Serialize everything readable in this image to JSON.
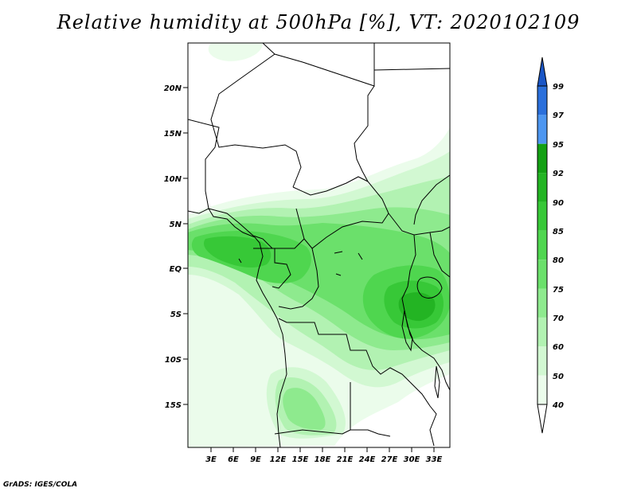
{
  "title": "Relative humidity at 500hPa [%], VT: 2020102109",
  "footer": "GrADS: IGES/COLA",
  "lat_labels": [
    "20N",
    "15N",
    "10N",
    "5N",
    "EQ",
    "5S",
    "10S",
    "15S"
  ],
  "lon_labels": [
    "3E",
    "6E",
    "9E",
    "12E",
    "15E",
    "18E",
    "21E",
    "24E",
    "27E",
    "30E",
    "33E"
  ],
  "colorbar": {
    "levels": [
      "99",
      "97",
      "95",
      "92",
      "90",
      "85",
      "80",
      "75",
      "70",
      "60",
      "50",
      "40"
    ],
    "bins": [
      {
        "color": "#2a6fdb"
      },
      {
        "color": "#4d96f0"
      },
      {
        "color": "#13a013"
      },
      {
        "color": "#23b423"
      },
      {
        "color": "#37c837"
      },
      {
        "color": "#4fd64f"
      },
      {
        "color": "#6be06b"
      },
      {
        "color": "#8eea8e"
      },
      {
        "color": "#b2f2b2"
      },
      {
        "color": "#d2f8d2"
      },
      {
        "color": "#ebfceb"
      }
    ],
    "top_arrow_color": "#1a56c6",
    "bottom_arrow_color": "#ffffff"
  }
}
